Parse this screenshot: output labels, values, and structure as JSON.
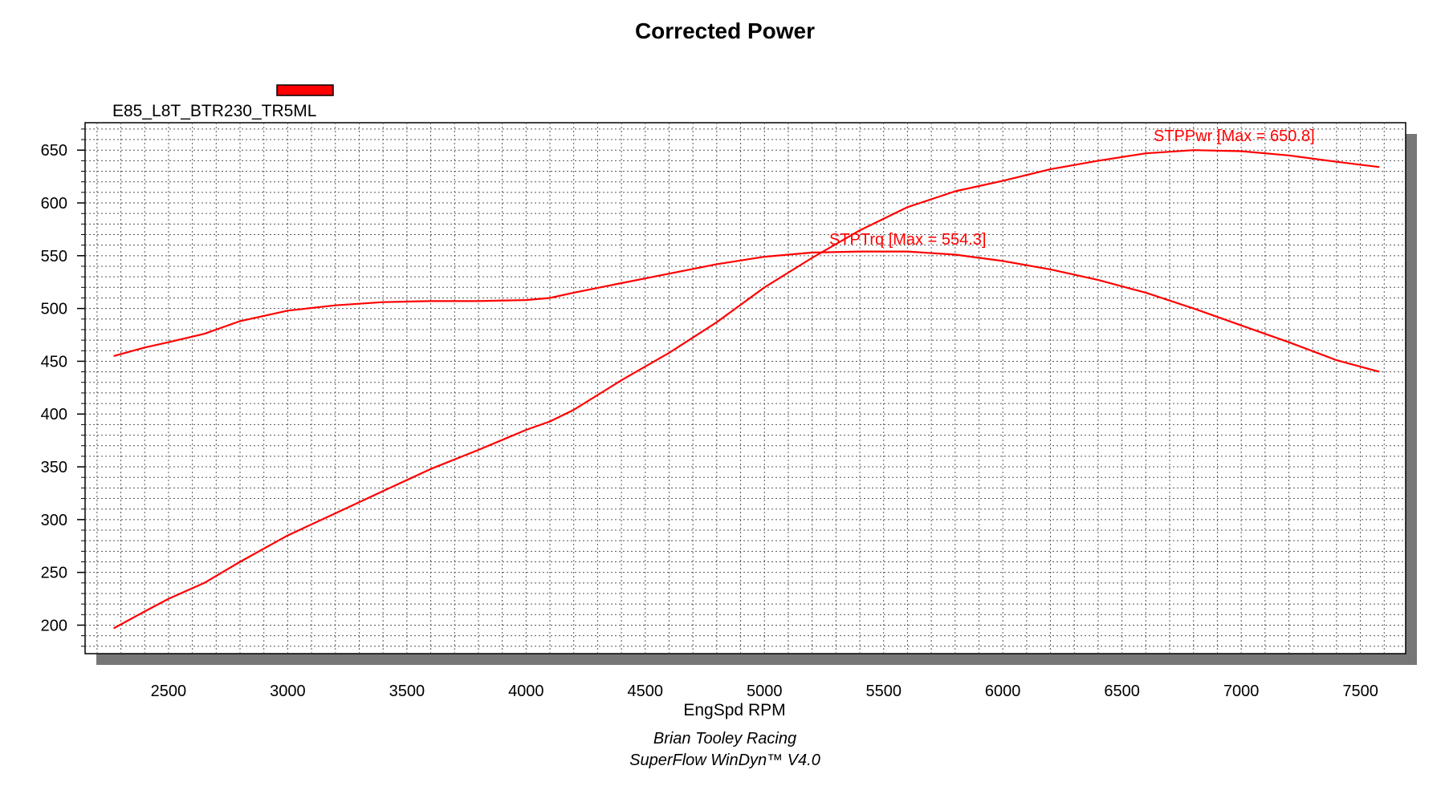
{
  "chart_data": {
    "type": "line",
    "title": "Corrected Power",
    "xlabel": "EngSpd RPM",
    "ylabel": "",
    "xlim": [
      2150,
      7690
    ],
    "ylim": [
      173,
      676
    ],
    "xticks": [
      2500,
      3000,
      3500,
      4000,
      4500,
      5000,
      5500,
      6000,
      6500,
      7000,
      7500
    ],
    "yticks": [
      200,
      250,
      300,
      350,
      400,
      450,
      500,
      550,
      600,
      650
    ],
    "grid": true,
    "legend": {
      "position": "top-left",
      "entries": [
        {
          "name": "E85_L8T_BTR230_TR5ML",
          "color": "#ff0000"
        }
      ]
    },
    "series": [
      {
        "name": "STPPwr",
        "color": "#ff0000",
        "x": [
          2270,
          2400,
          2500,
          2650,
          2800,
          3000,
          3200,
          3400,
          3600,
          3800,
          4000,
          4100,
          4200,
          4400,
          4600,
          4800,
          5000,
          5200,
          5400,
          5600,
          5800,
          6000,
          6200,
          6400,
          6600,
          6800,
          7000,
          7200,
          7400,
          7580
        ],
        "values": [
          197,
          213,
          225,
          240,
          260,
          285,
          306,
          327,
          348,
          366,
          385,
          393,
          404,
          432,
          458,
          487,
          520,
          548,
          574,
          596,
          611,
          621,
          632,
          640,
          647,
          650,
          649,
          645,
          639,
          634
        ]
      },
      {
        "name": "STPTrq",
        "color": "#ff0000",
        "x": [
          2270,
          2400,
          2500,
          2650,
          2800,
          3000,
          3200,
          3400,
          3600,
          3800,
          4000,
          4100,
          4200,
          4400,
          4600,
          4800,
          5000,
          5200,
          5400,
          5600,
          5800,
          6000,
          6200,
          6400,
          6600,
          6800,
          7000,
          7200,
          7400,
          7580
        ],
        "values": [
          455,
          463,
          468,
          476,
          488,
          498,
          503,
          506,
          507,
          507,
          508,
          510,
          515,
          524,
          533,
          542,
          549,
          553,
          554,
          554,
          551,
          545,
          537,
          527,
          515,
          500,
          484,
          468,
          451,
          440
        ]
      }
    ],
    "annotations": [
      "STPPwr [Max = 650.8]",
      "STPTrq [Max = 554.3]"
    ],
    "footer": [
      "Brian Tooley Racing",
      "SuperFlow WinDyn™  V4.0"
    ]
  }
}
